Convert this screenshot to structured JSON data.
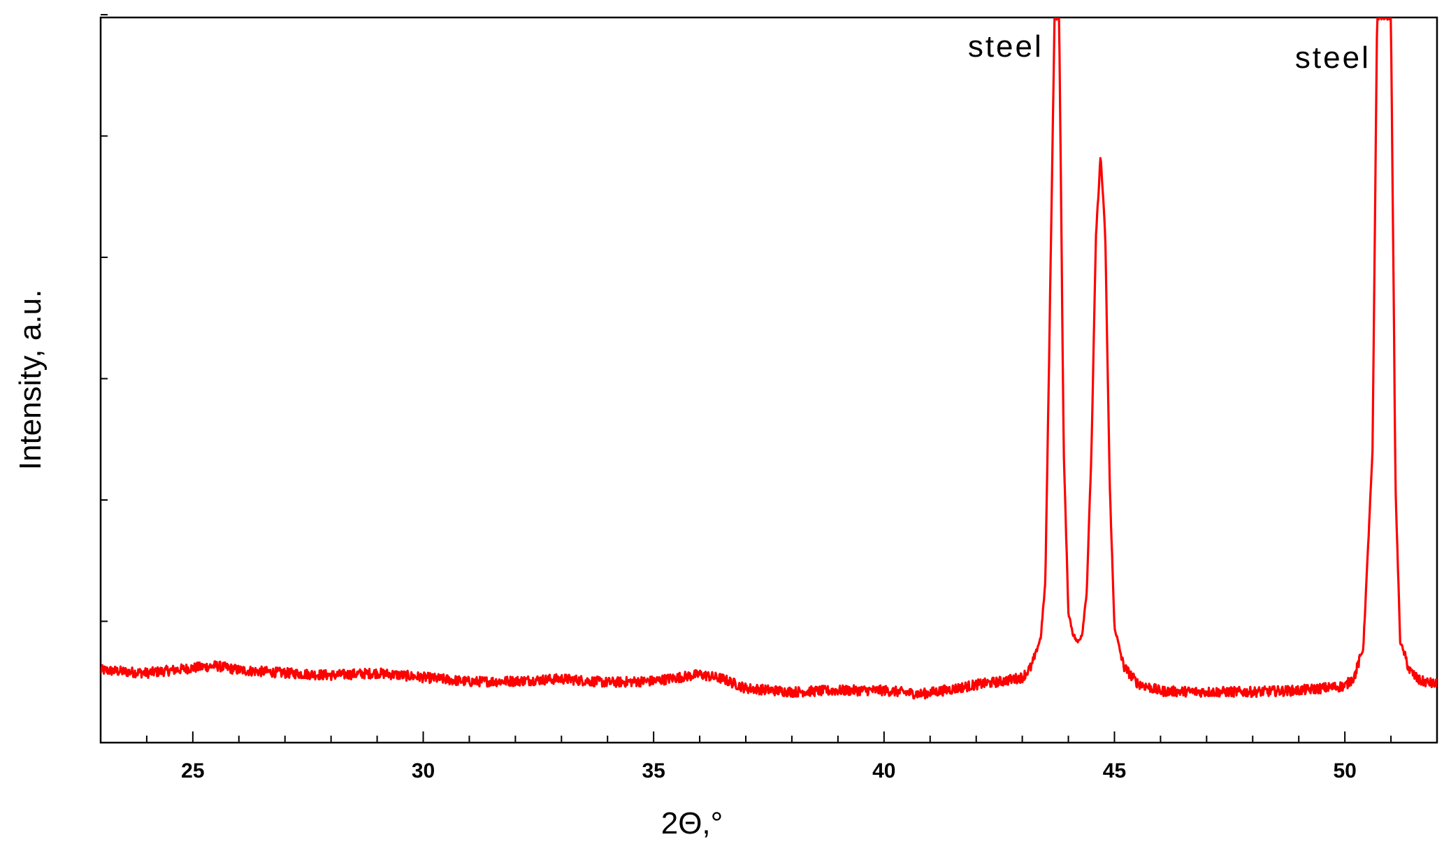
{
  "chart_data": {
    "type": "line",
    "xlabel": "2Θ,°",
    "ylabel": "Intensity, a.u.",
    "xlim": [
      23,
      52
    ],
    "ylim": [
      0,
      100
    ],
    "x_ticks": [
      25,
      30,
      35,
      40,
      45,
      50
    ],
    "y_ticks_labeled": false,
    "grid": false,
    "annotations": [
      {
        "text": "steel",
        "x": 43.7
      },
      {
        "text": "steel",
        "x": 50.8
      }
    ],
    "series": [
      {
        "color": "#ff0000",
        "x": [
          23,
          24,
          25,
          25.5,
          26,
          27,
          28,
          29,
          30,
          31,
          32,
          33,
          34,
          35,
          36,
          36.5,
          37,
          38,
          39,
          40,
          40.8,
          41.5,
          42,
          42.5,
          43,
          43.2,
          43.4,
          43.5,
          43.6,
          43.7,
          43.8,
          43.9,
          44.0,
          44.1,
          44.2,
          44.3,
          44.4,
          44.5,
          44.6,
          44.7,
          44.8,
          44.9,
          45.0,
          45.2,
          45.5,
          46,
          47,
          48,
          49,
          50,
          50.2,
          50.4,
          50.6,
          50.7,
          50.8,
          50.9,
          51.0,
          51.1,
          51.2,
          51.4,
          51.6,
          52
        ],
        "y": [
          10.0,
          9.6,
          10.3,
          10.6,
          10.0,
          9.6,
          9.3,
          9.6,
          9.0,
          8.4,
          8.5,
          8.8,
          8.3,
          8.5,
          9.4,
          8.8,
          7.5,
          7.0,
          7.2,
          7.2,
          6.7,
          7.4,
          8.0,
          8.4,
          9.0,
          10.5,
          14.5,
          22.0,
          60.0,
          100.0,
          100.0,
          40.0,
          18.0,
          15.0,
          13.8,
          15.0,
          21.0,
          40.0,
          70.0,
          81.0,
          70.0,
          35.0,
          16.0,
          10.5,
          8.2,
          7.1,
          7.0,
          7.0,
          7.2,
          7.8,
          9.0,
          13.0,
          40.0,
          100.0,
          100.0,
          100.0,
          100.0,
          35.0,
          14.0,
          10.0,
          8.6,
          8.0
        ]
      }
    ]
  }
}
